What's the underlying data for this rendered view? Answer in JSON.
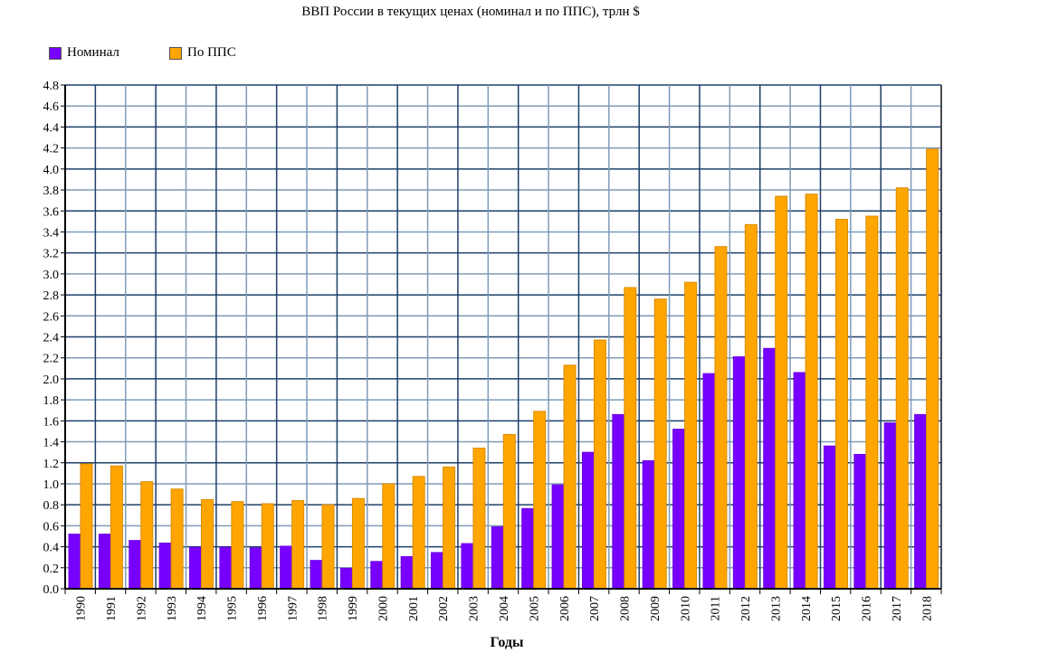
{
  "chart_data": {
    "type": "bar",
    "title": "ВВП России в текущих ценах (номинал и по ППС), трлн $",
    "xlabel": "Годы",
    "ylabel": "",
    "ylim": [
      0,
      4.8
    ],
    "ytick_step": 0.2,
    "grid": true,
    "legend_position": "top-left",
    "categories": [
      "1990",
      "1991",
      "1992",
      "1993",
      "1994",
      "1995",
      "1996",
      "1997",
      "1998",
      "1999",
      "2000",
      "2001",
      "2002",
      "2003",
      "2004",
      "2005",
      "2006",
      "2007",
      "2008",
      "2009",
      "2010",
      "2011",
      "2012",
      "2013",
      "2014",
      "2015",
      "2016",
      "2017",
      "2018"
    ],
    "series": [
      {
        "name": "Номинал",
        "color": "#7700ff",
        "values": [
          0.52,
          0.52,
          0.46,
          0.435,
          0.395,
          0.395,
          0.39,
          0.405,
          0.27,
          0.195,
          0.26,
          0.306,
          0.345,
          0.43,
          0.59,
          0.764,
          0.99,
          1.3,
          1.66,
          1.22,
          1.52,
          2.05,
          2.21,
          2.29,
          2.06,
          1.36,
          1.28,
          1.58,
          1.66
        ]
      },
      {
        "name": "По ППС",
        "color": "#ffa500",
        "values": [
          1.19,
          1.17,
          1.02,
          0.95,
          0.85,
          0.83,
          0.81,
          0.84,
          0.8,
          0.86,
          1.0,
          1.07,
          1.16,
          1.34,
          1.47,
          1.69,
          2.13,
          2.37,
          2.87,
          2.76,
          2.92,
          3.26,
          3.47,
          3.74,
          3.76,
          3.52,
          3.55,
          3.82,
          4.19
        ]
      }
    ]
  }
}
